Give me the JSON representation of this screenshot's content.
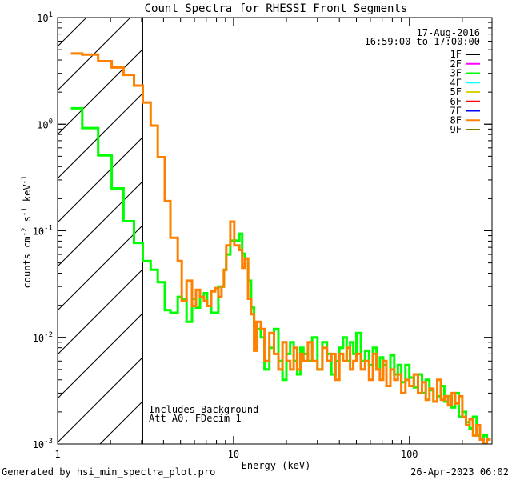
{
  "chart_data": {
    "type": "line",
    "title": "Count Spectra for RHESSI Front Segments",
    "xlabel": "Energy (keV)",
    "ylabel": "counts cm^-2 s^-1 keV^-1",
    "ylabel_parts": {
      "a": "counts cm",
      "b": "-2",
      "c": " s",
      "d": "-1",
      "e": " keV",
      "f": "-1"
    },
    "xscale": "log",
    "yscale": "log",
    "xlim": [
      1,
      295
    ],
    "ylim": [
      0.001,
      10
    ],
    "x_ticks": [
      {
        "value": 1,
        "label": "1"
      },
      {
        "value": 10,
        "label": "10"
      },
      {
        "value": 100,
        "label": "100"
      }
    ],
    "y_ticks": [
      {
        "value": 10,
        "base": "10",
        "exp": "1"
      },
      {
        "value": 1,
        "base": "10",
        "exp": "0"
      },
      {
        "value": 0.1,
        "base": "10",
        "exp": "-1"
      },
      {
        "value": 0.01,
        "base": "10",
        "exp": "-2"
      },
      {
        "value": 0.001,
        "base": "10",
        "exp": "-3"
      }
    ],
    "grid": false,
    "hatched_region_keV": [
      1,
      3.05
    ],
    "legend": {
      "placement": "top-right",
      "date": "17-Aug-2016",
      "time_range": "16:59:00 to 17:00:00",
      "entries": [
        {
          "name": "1F",
          "color": "#000000"
        },
        {
          "name": "2F",
          "color": "#ff00ff"
        },
        {
          "name": "3F",
          "color": "#00ff00"
        },
        {
          "name": "4F",
          "color": "#00ffff"
        },
        {
          "name": "5F",
          "color": "#d4d400"
        },
        {
          "name": "6F",
          "color": "#ff0000"
        },
        {
          "name": "7F",
          "color": "#0000ff"
        },
        {
          "name": "8F",
          "color": "#ff8000"
        },
        {
          "name": "9F",
          "color": "#808000"
        }
      ]
    },
    "annotations": [
      "Includes Background",
      "Att A0, FDecim 1"
    ],
    "energy_edges": [
      1.19,
      1.38,
      1.7,
      2.03,
      2.37,
      2.72,
      3.05,
      3.38,
      3.71,
      4.07,
      4.38,
      4.82,
      5.08,
      5.41,
      5.81,
      6.12,
      6.45,
      6.79,
      7.08,
      7.47,
      7.87,
      8.2,
      8.55,
      8.82,
      9.1,
      9.59,
      10.1,
      10.8,
      11.2,
      11.6,
      12.1,
      12.6,
      13.1,
      13.5,
      14.3,
      15,
      16,
      17,
      18,
      19,
      20,
      21,
      22,
      23,
      24,
      25,
      26.5,
      28,
      30,
      32,
      34,
      36,
      38,
      40,
      42,
      44,
      46,
      48,
      50,
      53,
      56,
      59,
      62,
      65,
      68,
      71,
      74,
      78,
      82,
      86,
      90,
      95,
      100,
      106,
      112,
      118,
      124,
      130,
      137,
      144,
      151,
      158,
      166,
      174,
      182,
      191,
      200,
      210,
      220,
      230,
      241,
      252,
      264,
      276,
      290
    ],
    "series": [
      {
        "name": "3F",
        "color": "#00ff00",
        "values": [
          1.41,
          0.92,
          0.51,
          0.25,
          0.123,
          0.077,
          0.052,
          0.043,
          0.033,
          0.018,
          0.017,
          0.024,
          0.023,
          0.014,
          0.023,
          0.019,
          0.024,
          0.026,
          0.0197,
          0.017,
          0.017,
          0.03,
          0.03,
          0.043,
          0.06,
          0.081,
          0.081,
          0.094,
          0.061,
          0.055,
          0.034,
          0.019,
          0.012,
          0.012,
          0.01,
          0.005,
          0.008,
          0.012,
          0.006,
          0.004,
          0.007,
          0.009,
          0.006,
          0.0045,
          0.008,
          0.007,
          0.006,
          0.01,
          0.005,
          0.009,
          0.007,
          0.0045,
          0.006,
          0.008,
          0.01,
          0.006,
          0.009,
          0.007,
          0.011,
          0.006,
          0.0075,
          0.0055,
          0.008,
          0.005,
          0.0065,
          0.0055,
          0.0035,
          0.0068,
          0.0045,
          0.0055,
          0.0038,
          0.0055,
          0.0042,
          0.0034,
          0.0045,
          0.003,
          0.004,
          0.0032,
          0.0025,
          0.0028,
          0.0035,
          0.0025,
          0.0028,
          0.0022,
          0.003,
          0.0018,
          0.002,
          0.0016,
          0.0014,
          0.0018,
          0.0012,
          0.0011,
          0.0012,
          0.0011
        ]
      },
      {
        "name": "8F",
        "color": "#ff8000",
        "values": [
          4.6,
          4.5,
          3.9,
          3.4,
          2.9,
          2.3,
          1.6,
          0.97,
          0.49,
          0.19,
          0.086,
          0.052,
          0.022,
          0.034,
          0.0197,
          0.028,
          0.024,
          0.022,
          0.0197,
          0.027,
          0.029,
          0.024,
          0.03,
          0.043,
          0.073,
          0.122,
          0.073,
          0.066,
          0.045,
          0.055,
          0.023,
          0.0165,
          0.0075,
          0.014,
          0.012,
          0.006,
          0.011,
          0.007,
          0.005,
          0.009,
          0.006,
          0.005,
          0.008,
          0.005,
          0.007,
          0.006,
          0.009,
          0.006,
          0.005,
          0.008,
          0.006,
          0.007,
          0.004,
          0.007,
          0.006,
          0.008,
          0.005,
          0.006,
          0.007,
          0.005,
          0.006,
          0.004,
          0.007,
          0.005,
          0.004,
          0.006,
          0.0035,
          0.005,
          0.004,
          0.0045,
          0.003,
          0.004,
          0.0035,
          0.0045,
          0.003,
          0.0038,
          0.0026,
          0.0033,
          0.0025,
          0.004,
          0.0026,
          0.0028,
          0.0023,
          0.003,
          0.0024,
          0.0028,
          0.0018,
          0.0015,
          0.0017,
          0.0012,
          0.0015,
          0.0011,
          0.001,
          0.0011
        ]
      }
    ]
  },
  "footer": {
    "generated_by": "Generated by hsi_min_spectra_plot.pro",
    "timestamp": "26-Apr-2023 06:02"
  }
}
